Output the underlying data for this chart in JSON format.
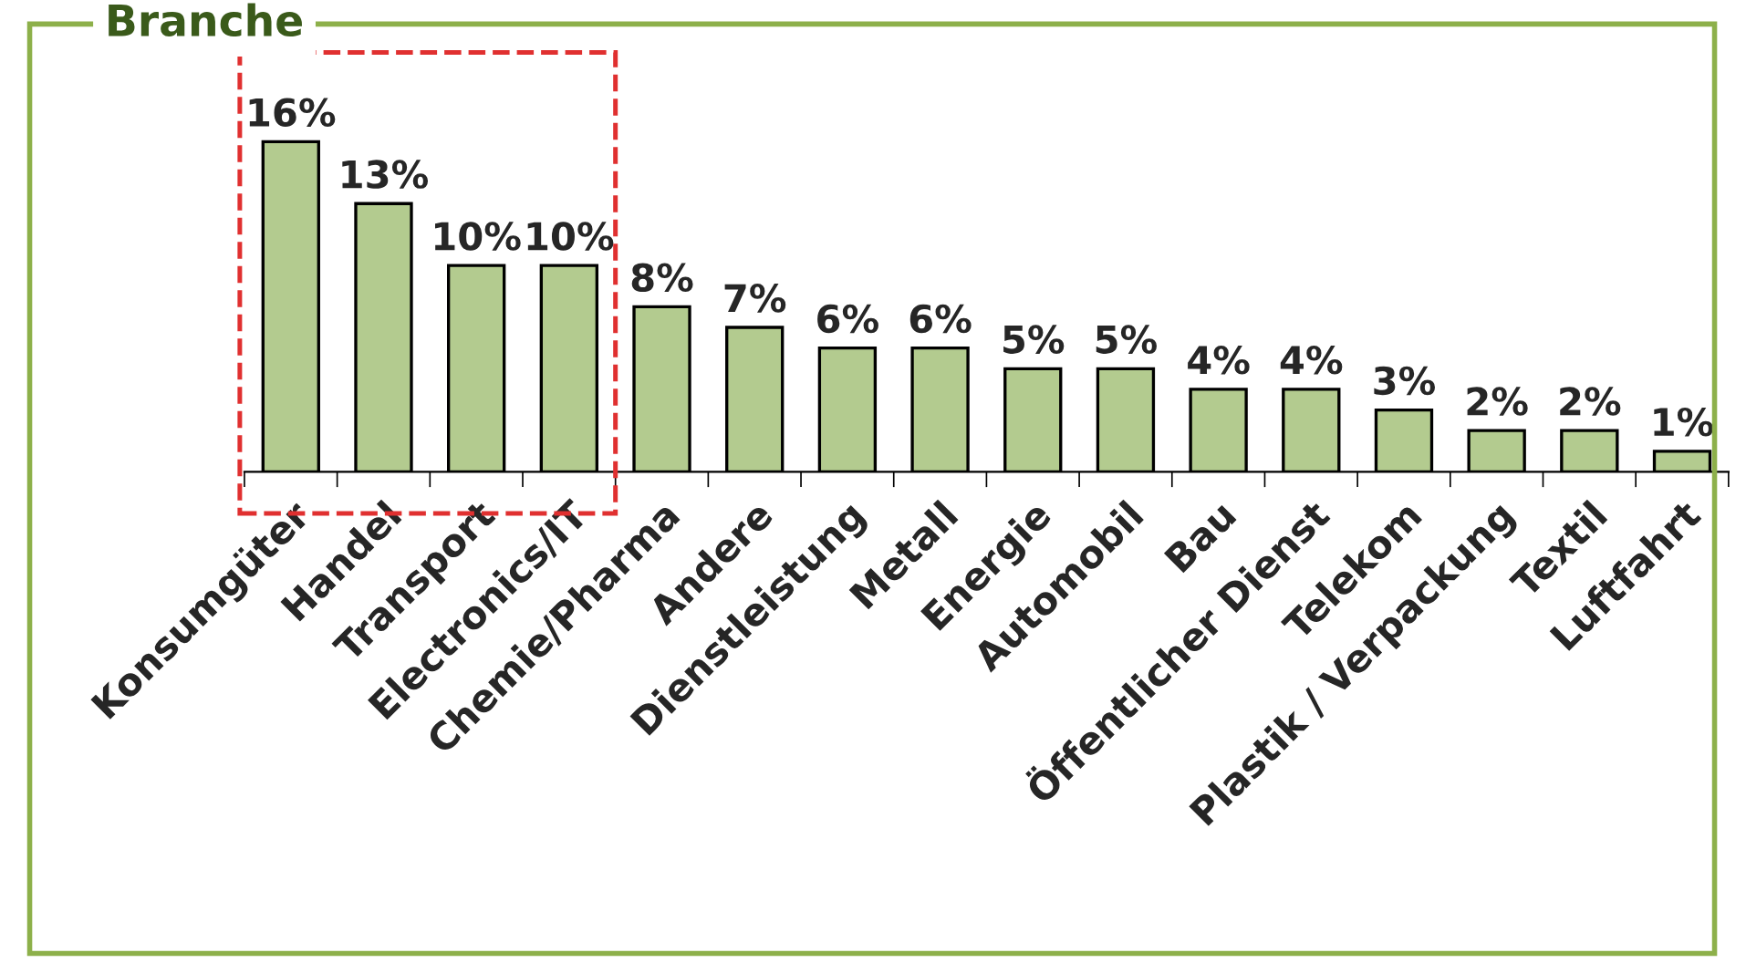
{
  "chart_data": {
    "type": "bar",
    "title": "Branche",
    "categories": [
      "Konsumgüter",
      "Handel",
      "Transport",
      "Electronics/IT",
      "Chemie/Pharma",
      "Andere",
      "Dienstleistung",
      "Metall",
      "Energie",
      "Automobil",
      "Bau",
      "Öffentlicher Dienst",
      "Telekom",
      "Plastik / Verpackung",
      "Textil",
      "Luftfahrt"
    ],
    "values": [
      16,
      13,
      10,
      10,
      8,
      7,
      6,
      6,
      5,
      5,
      4,
      4,
      3,
      2,
      2,
      1
    ],
    "value_labels": [
      "16%",
      "13%",
      "10%",
      "10%",
      "8%",
      "7%",
      "6%",
      "6%",
      "5%",
      "5%",
      "4%",
      "4%",
      "3%",
      "2%",
      "2%",
      "1%"
    ],
    "color": "#b3cb8f",
    "grid": false,
    "legend": false
  }
}
